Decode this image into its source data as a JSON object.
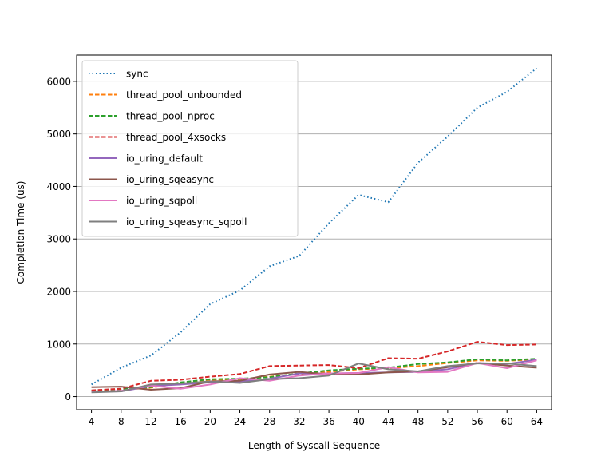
{
  "chart_data": {
    "type": "line",
    "xlabel": "Length of Syscall Sequence",
    "ylabel": "Completion Time (us)",
    "x": [
      4,
      8,
      12,
      16,
      20,
      24,
      28,
      32,
      36,
      40,
      44,
      48,
      52,
      56,
      60,
      64
    ],
    "ylim": [
      -250,
      6500
    ],
    "yticks": [
      0,
      1000,
      2000,
      3000,
      4000,
      5000,
      6000
    ],
    "grid": "horizontal",
    "legend_position": "upper-left",
    "series": [
      {
        "name": "sync",
        "style": "dotted",
        "color": "#1f77b4",
        "values": [
          230,
          550,
          780,
          1220,
          1760,
          2020,
          2480,
          2680,
          3300,
          3840,
          3700,
          4450,
          4950,
          5500,
          5800,
          6250
        ]
      },
      {
        "name": "thread_pool_unbounded",
        "style": "dashed",
        "color": "#ff7f0e",
        "values": [
          100,
          130,
          170,
          260,
          320,
          330,
          380,
          430,
          470,
          520,
          540,
          580,
          640,
          690,
          680,
          710
        ]
      },
      {
        "name": "thread_pool_nproc",
        "style": "dashed",
        "color": "#2ca02c",
        "values": [
          110,
          140,
          180,
          270,
          330,
          340,
          370,
          440,
          500,
          530,
          550,
          620,
          650,
          710,
          690,
          720
        ]
      },
      {
        "name": "thread_pool_4xsocks",
        "style": "dashed",
        "color": "#d62728",
        "values": [
          120,
          150,
          300,
          320,
          380,
          430,
          580,
          590,
          600,
          540,
          730,
          720,
          860,
          1040,
          980,
          990
        ]
      },
      {
        "name": "io_uring_default",
        "style": "solid",
        "color": "#9467bd",
        "values": [
          90,
          100,
          200,
          230,
          270,
          290,
          340,
          440,
          440,
          450,
          460,
          470,
          520,
          640,
          620,
          700
        ]
      },
      {
        "name": "io_uring_sqeasync",
        "style": "solid",
        "color": "#8c564b",
        "values": [
          180,
          190,
          130,
          160,
          290,
          300,
          420,
          470,
          420,
          420,
          460,
          480,
          560,
          640,
          590,
          550
        ]
      },
      {
        "name": "io_uring_sqpoll",
        "style": "solid",
        "color": "#e377c2",
        "values": [
          90,
          110,
          210,
          150,
          230,
          350,
          300,
          400,
          440,
          450,
          560,
          460,
          470,
          640,
          540,
          690
        ]
      },
      {
        "name": "io_uring_sqeasync_sqpoll",
        "style": "solid",
        "color": "#7f7f7f",
        "values": [
          80,
          100,
          230,
          250,
          290,
          260,
          330,
          350,
          400,
          630,
          520,
          480,
          580,
          630,
          630,
          580
        ]
      }
    ]
  }
}
